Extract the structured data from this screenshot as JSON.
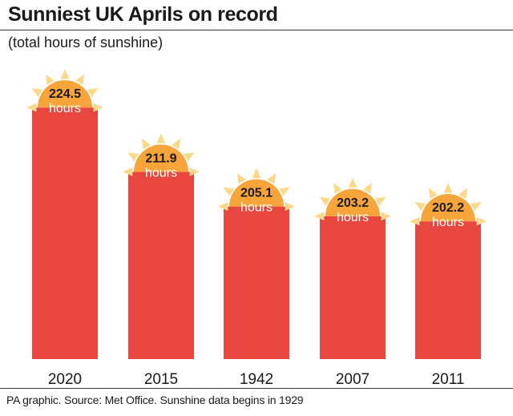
{
  "title": "Sunniest UK Aprils on record",
  "subtitle": "(total hours of sunshine)",
  "footer": "PA graphic. Source: Met Office. Sunshine data begins in 1929",
  "colors": {
    "bar": "#e8473f",
    "sun": "#f7a43a",
    "sun_ray": "#fcd98a",
    "text": "#1a1a1a"
  },
  "chart_data": {
    "type": "bar",
    "categories": [
      "2020",
      "2015",
      "1942",
      "2007",
      "2011"
    ],
    "values": [
      224.5,
      211.9,
      205.1,
      203.2,
      202.2
    ],
    "value_labels": [
      "224.5",
      "211.9",
      "205.1",
      "203.2",
      "202.2"
    ],
    "unit_label": "hours",
    "title": "Sunniest UK Aprils on record",
    "subtitle": "(total hours of sunshine)",
    "xlabel": "",
    "ylabel": "",
    "grid": false,
    "legend": "none",
    "marker": "sun-icon"
  }
}
